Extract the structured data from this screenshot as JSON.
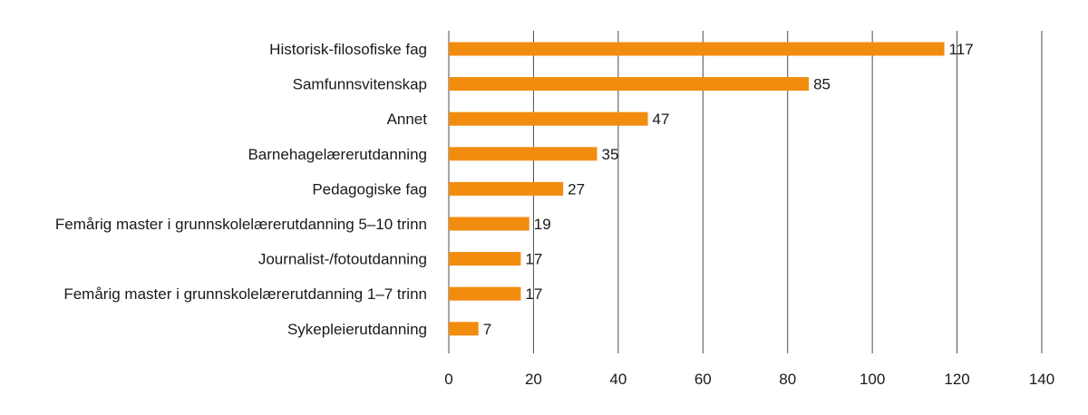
{
  "chart_data": {
    "type": "bar",
    "orientation": "horizontal",
    "categories": [
      "Historisk-filosofiske fag",
      "Samfunnsvitenskap",
      "Annet",
      "Barnehagelærerutdanning",
      "Pedagogiske fag",
      "Femårig master i grunnskolelærerutdanning 5–10 trinn",
      "Journalist-/fotoutdanning",
      "Femårig master i grunnskolelærerutdanning 1–7 trinn",
      "Sykepleierutdanning"
    ],
    "values": [
      117,
      85,
      47,
      35,
      27,
      19,
      17,
      17,
      7
    ],
    "data_labels": [
      "117",
      "85",
      "47",
      "35",
      "27",
      "19",
      "17",
      "17",
      "7"
    ],
    "xlim": [
      0,
      140
    ],
    "x_ticks": [
      0,
      20,
      40,
      60,
      80,
      100,
      120,
      140
    ],
    "x_tick_labels": [
      "0",
      "20",
      "40",
      "60",
      "80",
      "100",
      "120",
      "140"
    ],
    "grid": true,
    "legend": false,
    "bar_color": "#f28c0f"
  }
}
